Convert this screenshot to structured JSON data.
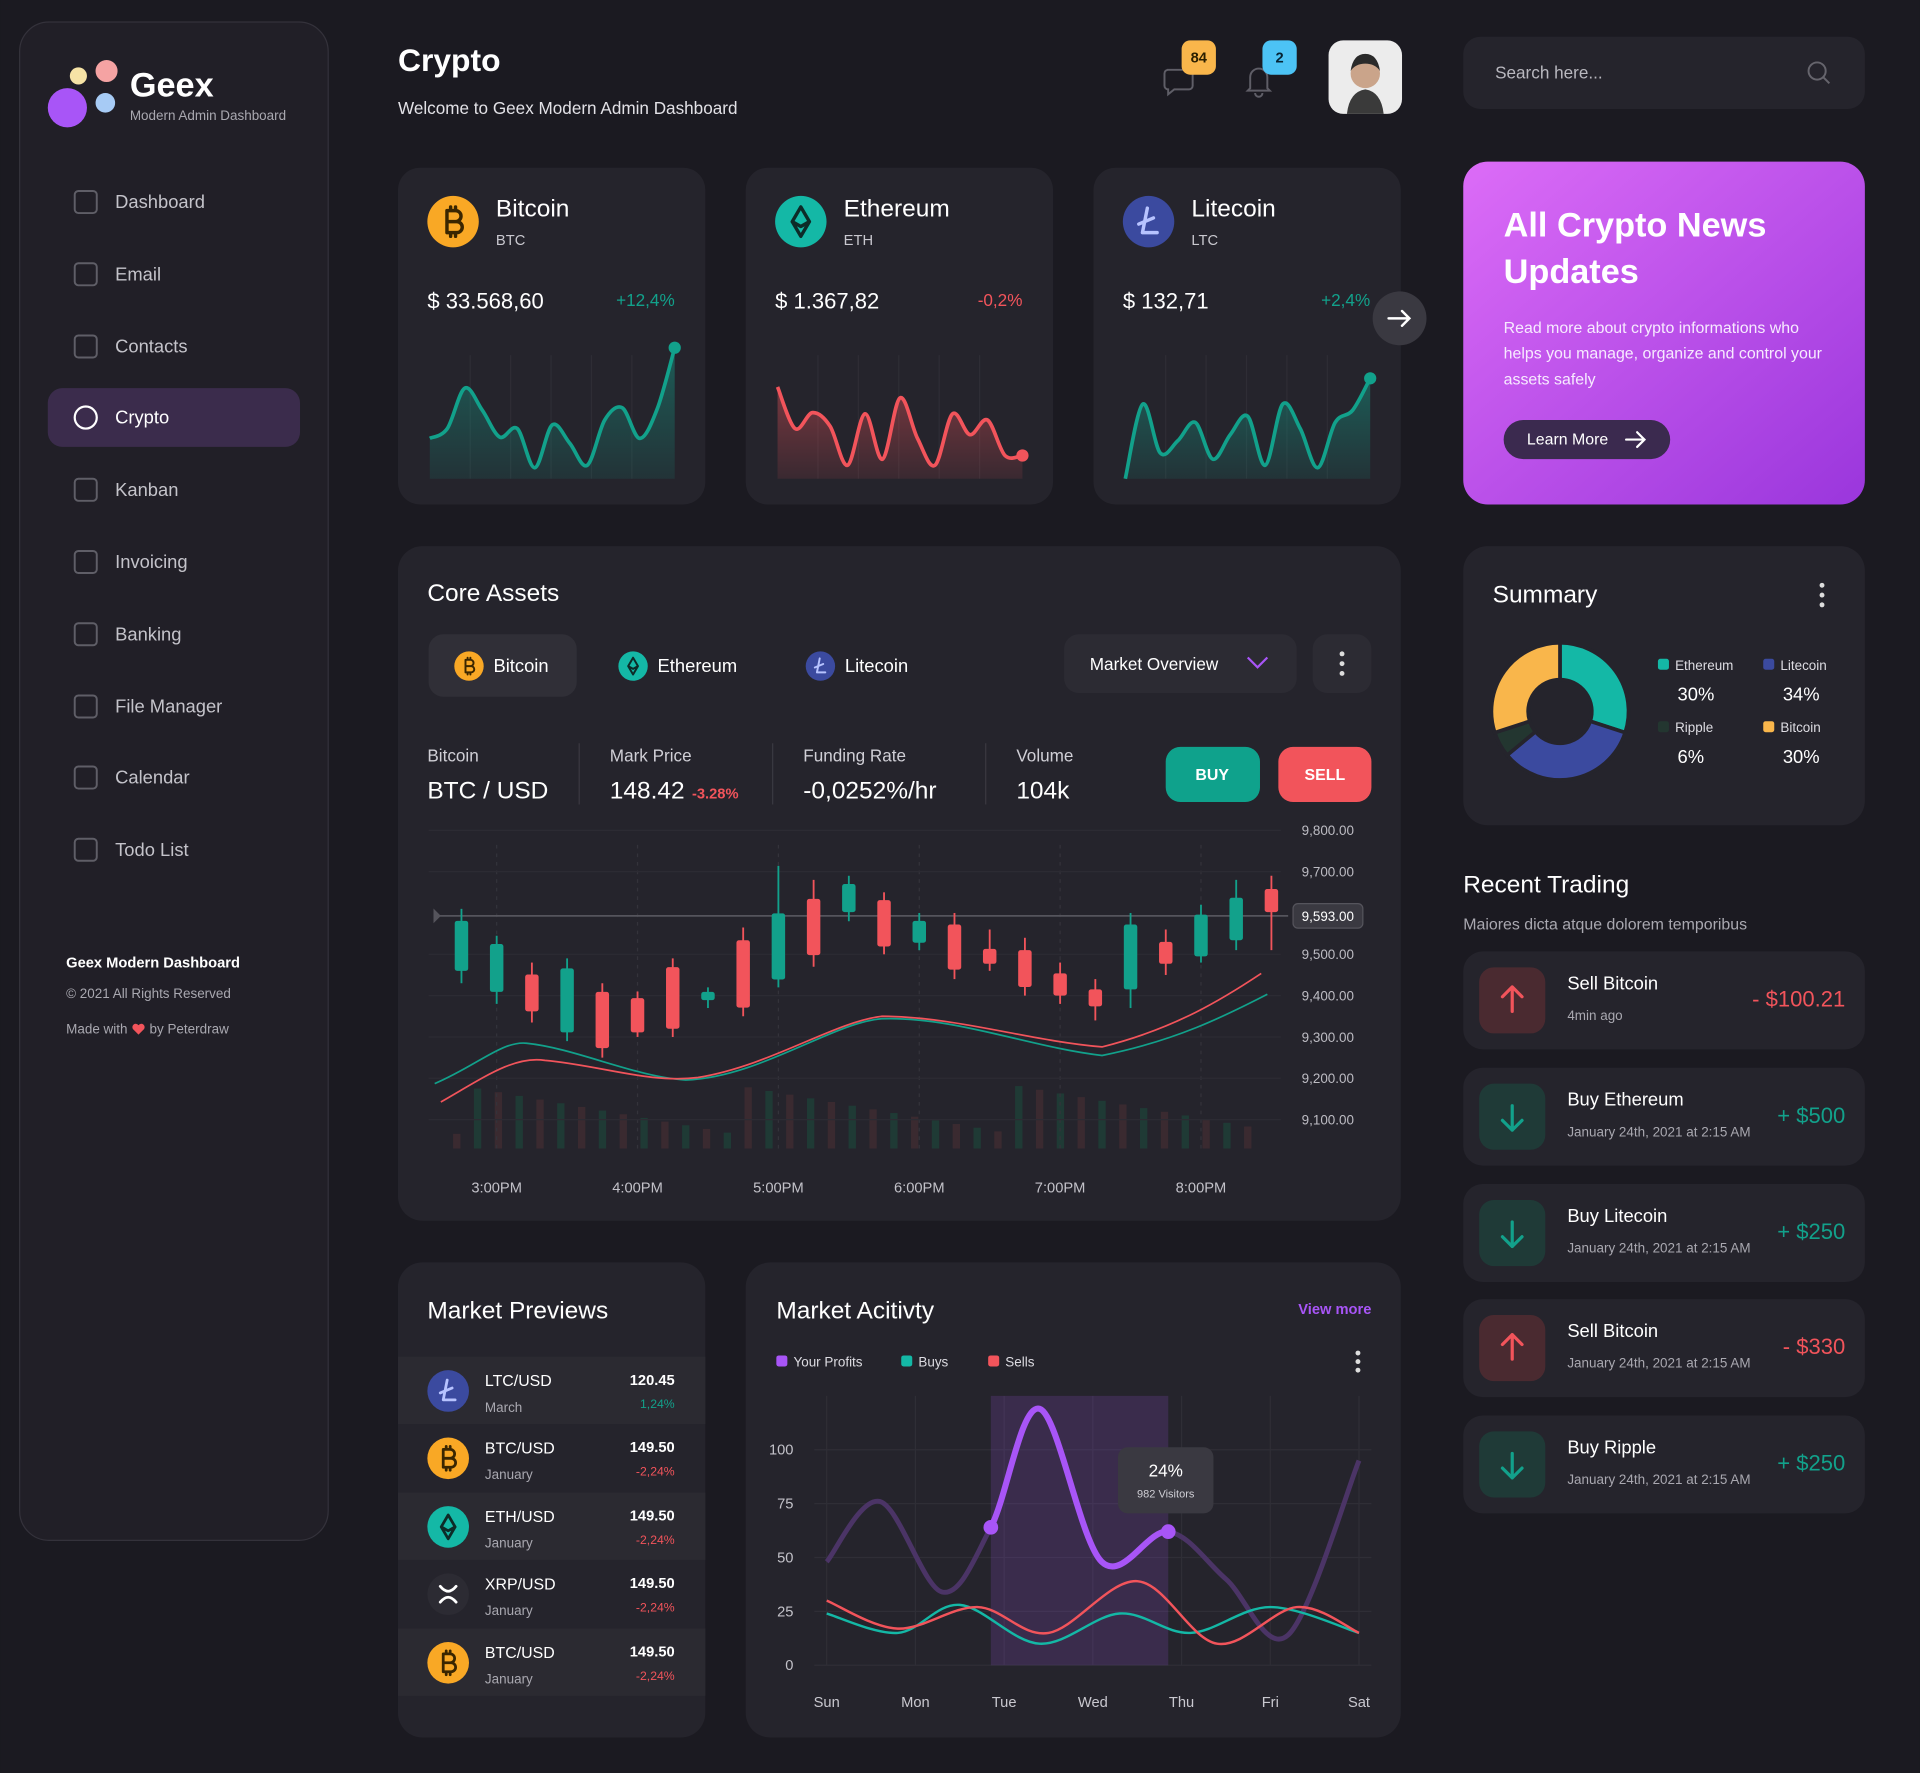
{
  "sidebar": {
    "brand": "Geex",
    "tagline": "Modern Admin Dashboard",
    "nav": [
      {
        "label": "Dashboard"
      },
      {
        "label": "Email"
      },
      {
        "label": "Contacts"
      },
      {
        "label": "Crypto",
        "active": true
      },
      {
        "label": "Kanban"
      },
      {
        "label": "Invoicing"
      },
      {
        "label": "Banking"
      },
      {
        "label": "File Manager"
      },
      {
        "label": "Calendar"
      },
      {
        "label": "Todo List"
      }
    ],
    "footer": {
      "title": "Geex Modern Dashboard",
      "copyright": "© 2021 All Rights Reserved",
      "made_with": "Made with",
      "made_by": "by Peterdraw"
    }
  },
  "header": {
    "title": "Crypto",
    "subtitle": "Welcome to Geex Modern Admin Dashboard",
    "messages_badge": 84,
    "notifications_badge": 2,
    "search_placeholder": "Search here..."
  },
  "coins": [
    {
      "name": "Bitcoin",
      "ticker": "BTC",
      "price": "$ 33.568,60",
      "change": "+12,4%",
      "sparkline": [
        33,
        41,
        74,
        56,
        34,
        41,
        9,
        44,
        29,
        11,
        48,
        58,
        33,
        57,
        107
      ]
    },
    {
      "name": "Ethereum",
      "ticker": "ETH",
      "price": "$ 1.367,82",
      "change": "-0,2%",
      "sparkline": [
        75,
        41,
        54,
        43,
        11,
        53,
        16,
        66,
        33,
        11,
        53,
        36,
        48,
        19,
        19
      ]
    },
    {
      "name": "Litecoin",
      "ticker": "LTC",
      "price": "$ 132,71",
      "change": "+2,4%",
      "sparkline": [
        0,
        61,
        21,
        31,
        46,
        16,
        36,
        51,
        11,
        61,
        41,
        9,
        46,
        56,
        82
      ]
    }
  ],
  "news": {
    "title_lines": [
      "All Crypto News",
      "Updates"
    ],
    "body_lines": [
      "Read more about crypto informations who",
      "helps you manage, organize and control your",
      "assets safely"
    ],
    "button": "Learn More"
  },
  "core_assets": {
    "title": "Core Assets",
    "tabs": [
      "Bitcoin",
      "Ethereum",
      "Litecoin"
    ],
    "dropdown": "Market Overview",
    "stats": [
      {
        "label": "Bitcoin",
        "value": "BTC / USD"
      },
      {
        "label": "Mark Price",
        "value": "148.42",
        "change": "-3.28%"
      },
      {
        "label": "Funding Rate",
        "value": "-0,0252%/hr"
      },
      {
        "label": "Volume",
        "value": "104k"
      }
    ],
    "buy": "BUY",
    "sell": "SELL",
    "chart": {
      "type": "candlestick",
      "x": [
        165,
        180,
        195,
        210,
        225,
        240,
        255,
        270,
        285,
        300,
        315,
        330,
        345,
        360,
        375,
        390,
        405,
        420,
        435,
        450,
        465,
        480,
        495,
        510
      ],
      "candles": [
        {
          "open": 9460,
          "close": 9581,
          "high": 9610,
          "low": 9430
        },
        {
          "open": 9409,
          "close": 9525,
          "high": 9545,
          "low": 9380
        },
        {
          "open": 9451,
          "close": 9362,
          "high": 9480,
          "low": 9335
        },
        {
          "open": 9311,
          "close": 9466,
          "high": 9490,
          "low": 9290
        },
        {
          "open": 9409,
          "close": 9273,
          "high": 9430,
          "low": 9250
        },
        {
          "open": 9394,
          "close": 9311,
          "high": 9410,
          "low": 9300
        },
        {
          "open": 9469,
          "close": 9320,
          "high": 9490,
          "low": 9300
        },
        {
          "open": 9389,
          "close": 9409,
          "high": 9420,
          "low": 9370
        },
        {
          "open": 9534,
          "close": 9371,
          "high": 9565,
          "low": 9350
        },
        {
          "open": 9439,
          "close": 9599,
          "high": 9714,
          "low": 9420
        },
        {
          "open": 9634,
          "close": 9498,
          "high": 9680,
          "low": 9470
        },
        {
          "open": 9602,
          "close": 9670,
          "high": 9690,
          "low": 9580
        },
        {
          "open": 9631,
          "close": 9519,
          "high": 9650,
          "low": 9500
        },
        {
          "open": 9528,
          "close": 9581,
          "high": 9600,
          "low": 9510
        },
        {
          "open": 9572,
          "close": 9463,
          "high": 9600,
          "low": 9440
        },
        {
          "open": 9513,
          "close": 9477,
          "high": 9560,
          "low": 9460
        },
        {
          "open": 9510,
          "close": 9421,
          "high": 9540,
          "low": 9400
        },
        {
          "open": 9454,
          "close": 9400,
          "high": 9480,
          "low": 9380
        },
        {
          "open": 9415,
          "close": 9374,
          "high": 9440,
          "low": 9340
        },
        {
          "open": 9415,
          "close": 9572,
          "high": 9600,
          "low": 9370
        },
        {
          "open": 9530,
          "close": 9477,
          "high": 9560,
          "low": 9450
        },
        {
          "open": 9495,
          "close": 9596,
          "high": 9620,
          "low": 9480
        },
        {
          "open": 9534,
          "close": 9637,
          "high": 9680,
          "low": 9510
        },
        {
          "open": 9658,
          "close": 9602,
          "high": 9690,
          "low": 9510
        }
      ],
      "up_color": "#12a18b",
      "down_color": "#f2545b",
      "xlim": [
        151,
        514
      ],
      "xticks": [
        {
          "value": 180,
          "label": "3:00PM"
        },
        {
          "value": 240,
          "label": "4:00PM"
        },
        {
          "value": 300,
          "label": "5:00PM"
        },
        {
          "value": 360,
          "label": "6:00PM"
        },
        {
          "value": 420,
          "label": "7:00PM"
        },
        {
          "value": 480,
          "label": "8:00PM"
        }
      ],
      "ylim": [
        9030,
        9830
      ],
      "yticks": [
        {
          "value": 9800,
          "label": "9,800.00"
        },
        {
          "value": 9700,
          "label": "9,700.00"
        },
        {
          "value": 9500,
          "label": "9,500.00"
        },
        {
          "value": 9400,
          "label": "9,400.00"
        },
        {
          "value": 9300,
          "label": "9,300.00"
        },
        {
          "value": 9200,
          "label": "9,200.00"
        },
        {
          "value": 9100,
          "label": "9,100.00"
        }
      ],
      "last_price": {
        "value": 9593,
        "label": "9,593.00"
      },
      "grid": true
    }
  },
  "summary": {
    "title": "Summary",
    "chart": {
      "type": "donut",
      "categories": [
        "Ethereum",
        "Litecoin",
        "Ripple",
        "Bitcoin"
      ],
      "values": [
        30,
        34,
        6,
        30
      ],
      "value_labels": [
        "30%",
        "34%",
        "6%",
        "30%"
      ],
      "colors": [
        "#14b8a6",
        "#3b4a9f",
        "#233630",
        "#f9b64b"
      ]
    }
  },
  "recent_trading": {
    "title": "Recent Trading",
    "subtitle": "Maiores dicta atque dolorem temporibus",
    "items": [
      {
        "title": "Sell Bitcoin",
        "time": "4min ago",
        "amount": "- $100.21"
      },
      {
        "title": "Buy Ethereum",
        "time": "January 24th, 2021 at 2:15 AM",
        "amount": "+ $500"
      },
      {
        "title": "Buy Litecoin",
        "time": "January 24th, 2021 at 2:15 AM",
        "amount": "+ $250"
      },
      {
        "title": "Sell Bitcoin",
        "time": "January 24th, 2021 at 2:15 AM",
        "amount": "- $330"
      },
      {
        "title": "Buy Ripple",
        "time": "January 24th, 2021 at 2:15 AM",
        "amount": "+ $250"
      }
    ]
  },
  "market_previews": {
    "title": "Market Previews",
    "items": [
      {
        "pair": "LTC/USD",
        "period": "March",
        "price": "120.45",
        "change": "1,24%"
      },
      {
        "pair": "BTC/USD",
        "period": "January",
        "price": "149.50",
        "change": "-2,24%"
      },
      {
        "pair": "ETH/USD",
        "period": "January",
        "price": "149.50",
        "change": "-2,24%"
      },
      {
        "pair": "XRP/USD",
        "period": "January",
        "price": "149.50",
        "change": "-2,24%"
      },
      {
        "pair": "BTC/USD",
        "period": "January",
        "price": "149.50",
        "change": "-2,24%"
      }
    ]
  },
  "market_activity": {
    "title": "Market Acitivty",
    "link": "View more",
    "chart": {
      "type": "line",
      "xlim": [
        -0.14,
        6.14
      ],
      "xticks": [
        {
          "value": 0,
          "label": "Sun"
        },
        {
          "value": 1,
          "label": "Mon"
        },
        {
          "value": 2,
          "label": "Tue"
        },
        {
          "value": 3,
          "label": "Wed"
        },
        {
          "value": 4,
          "label": "Thu"
        },
        {
          "value": 5,
          "label": "Fri"
        },
        {
          "value": 6,
          "label": "Sat"
        }
      ],
      "ylim": [
        0,
        125
      ],
      "yticks": [
        0,
        25,
        50,
        75,
        100
      ],
      "grid": true,
      "series": [
        {
          "name": "Your Profits",
          "color": "#a855f7",
          "x": [
            0,
            0.6,
            1.3,
            1.85,
            2.4,
            3.1,
            3.85,
            4.5,
            5.2,
            6
          ],
          "values": [
            48,
            76,
            34,
            64,
            119,
            48,
            62,
            40,
            14,
            95
          ]
        },
        {
          "name": "Buys",
          "color": "#14b8a6",
          "x": [
            0,
            0.8,
            1.5,
            2.4,
            3.3,
            4.1,
            5,
            6
          ],
          "values": [
            24,
            15,
            28,
            10,
            24,
            15,
            27,
            15
          ]
        },
        {
          "name": "Sells",
          "color": "#f2545b",
          "x": [
            0,
            0.8,
            1.7,
            2.5,
            3.5,
            4.4,
            5.3,
            6
          ],
          "values": [
            30,
            17,
            27,
            15,
            39,
            10,
            27,
            15
          ]
        }
      ],
      "tooltip": {
        "value": "24%",
        "label": "982 Visitors"
      }
    }
  }
}
